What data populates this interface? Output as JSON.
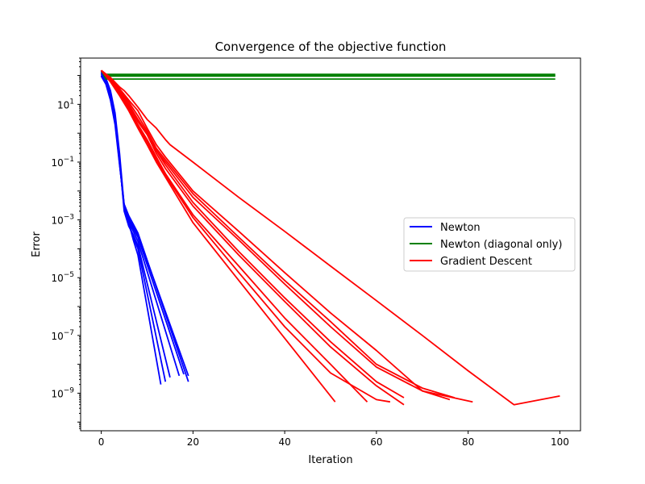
{
  "chart_data": {
    "type": "line",
    "title": "Convergence of the objective function",
    "xlabel": "Iteration",
    "ylabel": "Error",
    "xlim": [
      -4.5,
      104.5
    ],
    "ylim": [
      5e-11,
      400.0
    ],
    "yscale": "log",
    "grid": false,
    "legend_position": "center-right",
    "x_ticks": [
      0,
      20,
      40,
      60,
      80,
      100
    ],
    "x_tick_labels": [
      "0",
      "20",
      "40",
      "60",
      "80",
      "100"
    ],
    "y_ticks": [
      1e-09,
      1e-07,
      1e-05,
      0.001,
      0.1,
      10
    ],
    "y_tick_labels": [
      {
        "base": "10",
        "exp": "−9"
      },
      {
        "base": "10",
        "exp": "−7"
      },
      {
        "base": "10",
        "exp": "−5"
      },
      {
        "base": "10",
        "exp": "−3"
      },
      {
        "base": "10",
        "exp": "−1"
      },
      {
        "base": "10",
        "exp": "1"
      }
    ],
    "series": [
      {
        "name": "Newton",
        "color": "#0000ff",
        "x": [
          0,
          1,
          2,
          3,
          4,
          5,
          6,
          7,
          8,
          13
        ],
        "y": [
          150,
          80,
          30,
          5,
          0.2,
          0.003,
          0.0008,
          0.0002,
          6e-05,
          2e-09
        ]
      },
      {
        "color": "#0000ff",
        "x": [
          0,
          1,
          2,
          3,
          4,
          5,
          6,
          7,
          8,
          14
        ],
        "y": [
          140,
          75,
          25,
          4,
          0.15,
          0.0025,
          0.0007,
          0.00025,
          0.0001,
          2.5e-09
        ]
      },
      {
        "color": "#0000ff",
        "x": [
          0,
          1,
          2,
          3,
          4,
          5,
          6,
          7,
          8,
          15
        ],
        "y": [
          130,
          70,
          20,
          3,
          0.12,
          0.002,
          0.0006,
          0.0003,
          0.00013,
          3.5e-09
        ]
      },
      {
        "color": "#0000ff",
        "x": [
          0,
          1,
          2,
          3,
          4,
          5,
          6,
          7,
          8,
          17
        ],
        "y": [
          120,
          65,
          18,
          3,
          0.1,
          0.0025,
          0.0008,
          0.0004,
          0.00018,
          4e-09
        ]
      },
      {
        "color": "#0000ff",
        "x": [
          0,
          1,
          2,
          3,
          4,
          5,
          6,
          7,
          8,
          18
        ],
        "y": [
          110,
          60,
          16,
          2.5,
          0.1,
          0.003,
          0.001,
          0.0005,
          0.00025,
          4.5e-09
        ]
      },
      {
        "color": "#0000ff",
        "x": [
          0,
          1,
          2,
          3,
          4,
          5,
          6,
          7,
          8,
          19
        ],
        "y": [
          100,
          55,
          15,
          2.5,
          0.09,
          0.003,
          0.0012,
          0.0006,
          0.0003,
          4e-09
        ]
      },
      {
        "color": "#0000ff",
        "x": [
          0,
          1,
          2,
          3,
          4,
          5,
          6,
          7,
          8,
          19
        ],
        "y": [
          95,
          50,
          14,
          2,
          0.08,
          0.0035,
          0.0014,
          0.0007,
          0.00035,
          2.5e-09
        ]
      },
      {
        "name": "Newton (diagonal only)",
        "color": "#008000",
        "x": [
          0,
          1,
          99
        ],
        "y": [
          150,
          110,
          110
        ]
      },
      {
        "color": "#008000",
        "x": [
          0,
          1,
          99
        ],
        "y": [
          150,
          100,
          100
        ]
      },
      {
        "color": "#008000",
        "x": [
          0,
          1,
          99
        ],
        "y": [
          150,
          95,
          95
        ]
      },
      {
        "color": "#008000",
        "x": [
          0,
          1,
          99
        ],
        "y": [
          150,
          75,
          75
        ]
      },
      {
        "name": "Gradient Descent",
        "color": "#ff0000",
        "x": [
          0,
          2,
          4,
          5,
          6,
          8,
          10,
          12,
          14,
          15,
          20,
          30,
          40,
          50,
          60,
          70,
          80,
          90,
          100
        ],
        "y": [
          150,
          85,
          40,
          30,
          20,
          8,
          3,
          1.5,
          0.6,
          0.4,
          0.1,
          0.006,
          0.0004,
          2.5e-05,
          1.6e-06,
          1e-07,
          6e-09,
          4e-10,
          8e-10
        ]
      },
      {
        "color": "#ff0000",
        "x": [
          0,
          2,
          4,
          6,
          8,
          10,
          12,
          14,
          20,
          30,
          40,
          50,
          60,
          70,
          81
        ],
        "y": [
          150,
          80,
          35,
          14,
          6,
          1.5,
          0.4,
          0.15,
          0.01,
          0.0004,
          1.5e-05,
          6e-07,
          3e-08,
          1.2e-09,
          5e-10
        ]
      },
      {
        "color": "#ff0000",
        "x": [
          0,
          2,
          4,
          6,
          8,
          10,
          12,
          14,
          20,
          30,
          40,
          50,
          60,
          70,
          77
        ],
        "y": [
          150,
          75,
          30,
          12,
          4,
          1.2,
          0.3,
          0.12,
          0.008,
          0.00025,
          8e-06,
          3e-07,
          1e-08,
          1.5e-09,
          7e-10
        ]
      },
      {
        "color": "#ff0000",
        "x": [
          0,
          2,
          4,
          6,
          8,
          10,
          12,
          14,
          20,
          30,
          40,
          50,
          60,
          70,
          76
        ],
        "y": [
          150,
          70,
          28,
          10,
          3,
          1,
          0.25,
          0.1,
          0.006,
          0.0002,
          6e-06,
          2e-07,
          8e-09,
          1.2e-09,
          6e-10
        ]
      },
      {
        "color": "#ff0000",
        "x": [
          0,
          2,
          4,
          6,
          8,
          10,
          12,
          14,
          20,
          30,
          40,
          50,
          60,
          66
        ],
        "y": [
          150,
          70,
          25,
          9,
          3,
          1,
          0.25,
          0.08,
          0.004,
          8e-05,
          2e-06,
          6e-08,
          2.5e-09,
          7e-10
        ]
      },
      {
        "color": "#ff0000",
        "x": [
          0,
          2,
          4,
          6,
          8,
          10,
          12,
          14,
          20,
          30,
          40,
          50,
          60,
          66
        ],
        "y": [
          150,
          68,
          24,
          8,
          2.5,
          0.9,
          0.2,
          0.06,
          0.003,
          6e-05,
          1.5e-06,
          4e-08,
          1.8e-09,
          4e-10
        ]
      },
      {
        "color": "#ff0000",
        "x": [
          0,
          2,
          4,
          6,
          8,
          10,
          12,
          14,
          20,
          30,
          40,
          50,
          58
        ],
        "y": [
          150,
          65,
          22,
          7,
          2,
          0.6,
          0.15,
          0.04,
          0.0015,
          2.5e-05,
          4e-07,
          1e-08,
          5e-10
        ]
      },
      {
        "color": "#ff0000",
        "x": [
          0,
          2,
          4,
          6,
          8,
          10,
          12,
          14,
          20,
          30,
          40,
          51
        ],
        "y": [
          150,
          60,
          20,
          6,
          1.5,
          0.4,
          0.1,
          0.03,
          0.0008,
          8e-06,
          8e-08,
          5e-10
        ]
      },
      {
        "color": "#ff0000",
        "x": [
          0,
          2,
          4,
          6,
          8,
          10,
          12,
          14,
          20,
          30,
          40,
          50,
          60,
          63
        ],
        "y": [
          150,
          62,
          21,
          6.5,
          1.8,
          0.5,
          0.12,
          0.035,
          0.0012,
          1.5e-05,
          2e-07,
          5e-09,
          6e-10,
          5e-10
        ]
      }
    ],
    "legend": [
      {
        "label": "Newton",
        "color": "#0000ff"
      },
      {
        "label": "Newton (diagonal only)",
        "color": "#008000"
      },
      {
        "label": "Gradient Descent",
        "color": "#ff0000"
      }
    ]
  }
}
